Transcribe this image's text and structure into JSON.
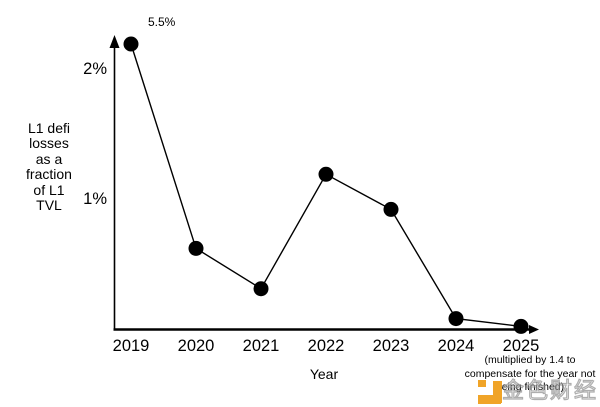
{
  "page": {
    "background": "#ffffff"
  },
  "chart_data": {
    "type": "line",
    "title": "",
    "xlabel": "Year",
    "ylabel": "L1 defi losses as a fraction of L1 TVL",
    "ylabel_multiline": "L1 defi\nlosses\nas a\nfraction\nof L1\nTVL",
    "categories": [
      "2019",
      "2020",
      "2021",
      "2022",
      "2023",
      "2024",
      "2025"
    ],
    "values": [
      5.5,
      0.62,
      0.31,
      1.19,
      0.92,
      0.08,
      0.02
    ],
    "y_ticks": [
      {
        "label": "2%",
        "value": 2
      },
      {
        "label": "1%",
        "value": 1
      }
    ],
    "ylim": [
      0,
      2.25
    ],
    "grid": false,
    "legend": false,
    "marker": "filled-circle",
    "line_color": "#000000",
    "point_color": "#000000",
    "axis_color": "#000000",
    "annotation_2019": "5.5%",
    "annotation_2019_note": "2019 point is drawn clipped at the top of the y-axis; its true value is 5.5%",
    "footnote": "(multiplied by 1.4 to\ncompensate for the year not\nbeing finished)"
  },
  "watermark": {
    "text": "金色财经",
    "logo_color": "#F0A428",
    "text_color": "#8c8c8c"
  }
}
